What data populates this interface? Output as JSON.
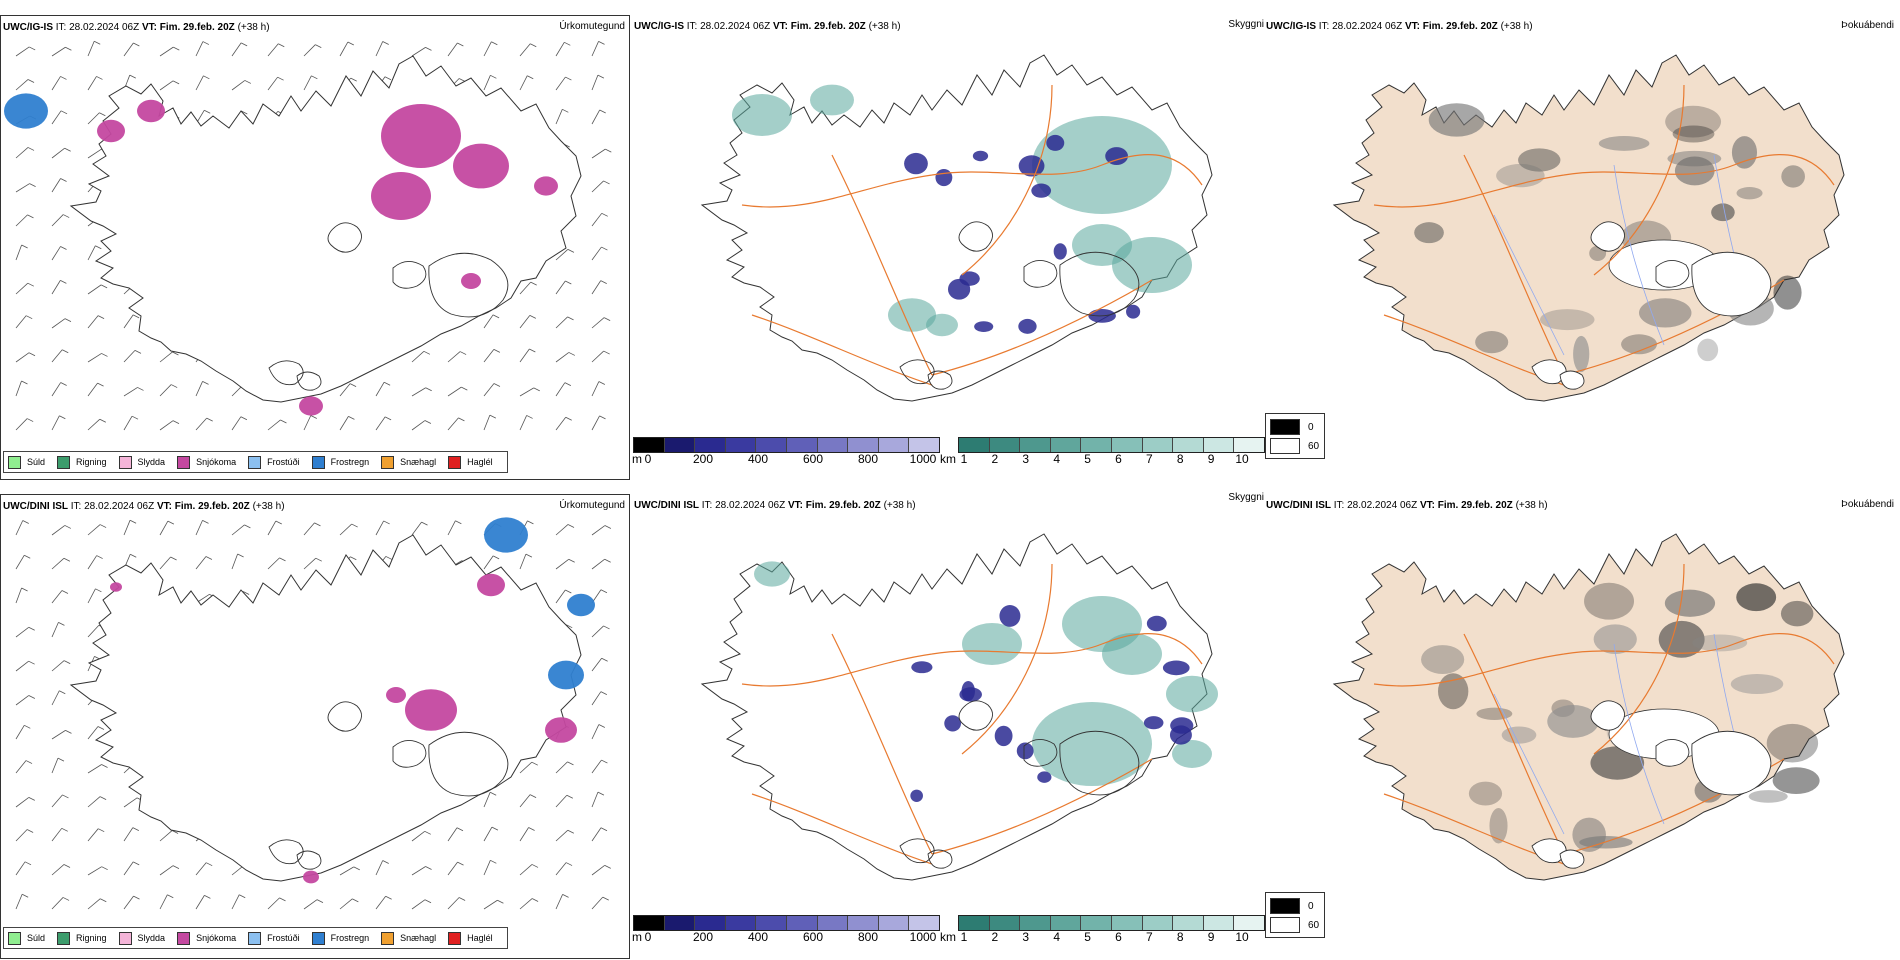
{
  "rows": [
    {
      "model": "UWC/IG-IS",
      "it_label": "IT:",
      "it_value": "28.02.2024 06Z",
      "vt_label": "VT:",
      "vt_value": "Fim. 29.feb. 20Z",
      "lead": "(+38 h)",
      "precip_title": "Úrkomutegund",
      "sky_title": "Skyggni",
      "fog_title": "Þokuábendi"
    },
    {
      "model": "UWC/DINI ISL",
      "it_label": "IT:",
      "it_value": "28.02.2024 06Z",
      "vt_label": "VT:",
      "vt_value": "Fim. 29.feb. 20Z",
      "lead": "(+38 h)",
      "precip_title": "Úrkomutegund",
      "sky_title": "Skyggni",
      "fog_title": "Þokuábendi"
    }
  ],
  "precip_legend": [
    {
      "label": "Súld",
      "color": "#90ee90"
    },
    {
      "label": "Rigning",
      "color": "#3c9c6c"
    },
    {
      "label": "Slydda",
      "color": "#f4b4d8"
    },
    {
      "label": "Snjókoma",
      "color": "#c448a0"
    },
    {
      "label": "Frostúði",
      "color": "#8cc0f0"
    },
    {
      "label": "Frostregn",
      "color": "#2f7fd0"
    },
    {
      "label": "Snæhagl",
      "color": "#f0a030"
    },
    {
      "label": "Haglél",
      "color": "#e02020"
    }
  ],
  "cloud_base_bar": {
    "unit": "m",
    "ticks": [
      "0",
      "200",
      "400",
      "600",
      "800",
      "1000"
    ],
    "colors": [
      "#000000",
      "#1a1a6e",
      "#2a2a90",
      "#3a3aa0",
      "#4c4cac",
      "#6060b8",
      "#7878c4",
      "#9090d0",
      "#a8a8dc",
      "#c4c4e8"
    ]
  },
  "visibility_bar": {
    "unit": "km",
    "ticks": [
      "1",
      "2",
      "3",
      "4",
      "5",
      "6",
      "7",
      "8",
      "9",
      "10"
    ],
    "colors": [
      "#2d7c72",
      "#3d8a80",
      "#4e988e",
      "#60a69c",
      "#72b3aa",
      "#86c0b8",
      "#9ccdc6",
      "#b4dad4",
      "#cce7e3",
      "#e6f3f1"
    ]
  },
  "fog_legend": [
    {
      "label": "0",
      "color": "#000000"
    },
    {
      "label": "60",
      "color": "#ffffff"
    }
  ],
  "colors": {
    "land_fog": "#f2dfcc",
    "coast": "#333333",
    "roads": "#e87a30",
    "rivers": "#8fa8f0",
    "sky_cloud": "#5aa89c",
    "low_cloud": "#2a2a90"
  }
}
